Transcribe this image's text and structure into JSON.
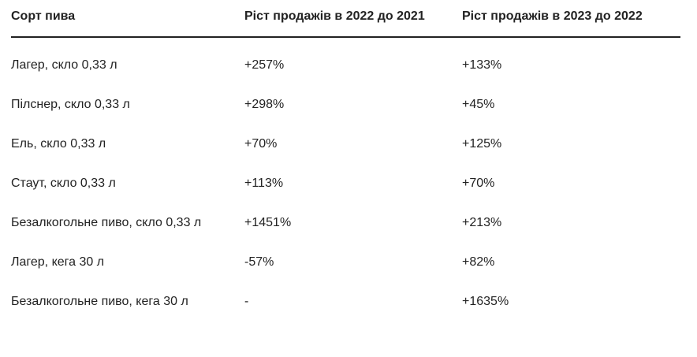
{
  "table": {
    "header": [
      "Сорт пива",
      "Ріст продажів в 2022 до 2021",
      "Ріст продажів в 2023 до 2022"
    ],
    "rows": [
      [
        "Лагер, скло 0,33 л",
        "+257%",
        "+133%"
      ],
      [
        "Пілснер, скло 0,33 л",
        "+298%",
        "+45%"
      ],
      [
        "Ель, скло 0,33 л",
        "+70%",
        "+125%"
      ],
      [
        "Стаут, скло 0,33 л",
        "+113%",
        "+70%"
      ],
      [
        "Безалкогольне пиво, скло 0,33 л",
        "+1451%",
        "+213%"
      ],
      [
        "Лагер, кега 30 л",
        "-57%",
        "+82%"
      ],
      [
        "Безалкогольне пиво, кега 30 л",
        "-",
        "+1635%"
      ]
    ]
  }
}
